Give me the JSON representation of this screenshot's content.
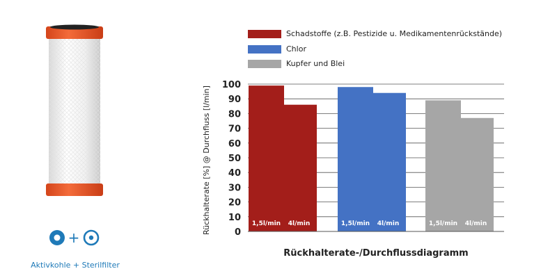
{
  "product": {
    "caption": "Aktivkohle + Sterilfilter",
    "badge_plus": "+",
    "colors": {
      "cap": "#ef5a28",
      "body": "#f4f4f4",
      "badge": "#1f7ab8"
    }
  },
  "chart_data": {
    "type": "bar",
    "title": "Rückhalterate-/Durchflussdiagramm",
    "xlabel": "",
    "ylabel": "Rückhalterate [%] @ Durchfluss [l/min]",
    "ylim": [
      0,
      100
    ],
    "yticks": [
      0,
      10,
      20,
      30,
      40,
      50,
      60,
      70,
      80,
      90,
      100
    ],
    "grid": true,
    "legend_position": "top",
    "categories": [
      "1,5l/min",
      "4l/min"
    ],
    "series": [
      {
        "name": "Schadstoffe (z.B. Pestizide u. Medikamentenrückstände)",
        "color": "#a31e1a",
        "values": [
          99,
          86
        ]
      },
      {
        "name": "Chlor",
        "color": "#4472c4",
        "values": [
          98,
          94
        ]
      },
      {
        "name": "Kupfer und Blei",
        "color": "#a6a6a6",
        "values": [
          89,
          77
        ]
      }
    ]
  }
}
